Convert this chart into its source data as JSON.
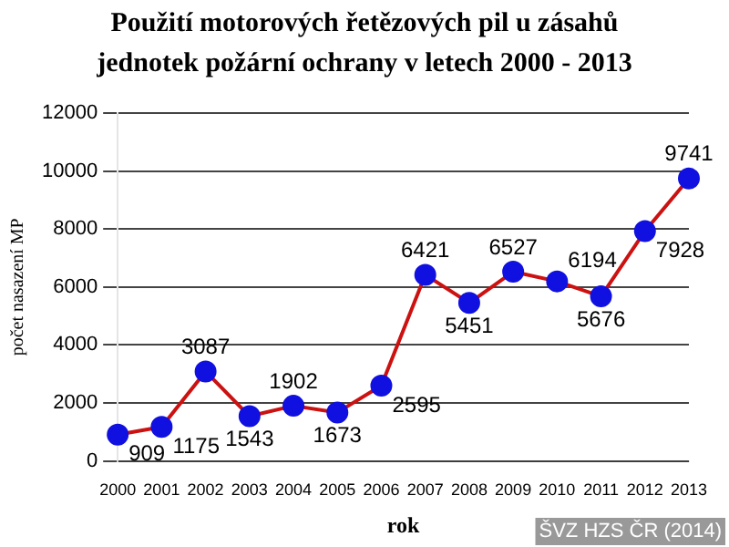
{
  "chart_data": {
    "type": "line",
    "title": "Použití motorových řetězových pil u zásahů jednotek požární ochrany v letech 2000 - 2013",
    "xlabel": "rok",
    "ylabel": "počet nasazení MP",
    "categories": [
      "2000",
      "2001",
      "2002",
      "2003",
      "2004",
      "2005",
      "2006",
      "2007",
      "2008",
      "2009",
      "2010",
      "2011",
      "2012",
      "2013"
    ],
    "series": [
      {
        "color": "#cc1111",
        "colors": [
          "#1010e0",
          "#1010e0",
          "#1010e0",
          "#1010e0",
          "#1010e0",
          "#1010e0",
          "#1010e0",
          "#1010e0",
          "#1010e0",
          "#1010e0",
          "#1010e0",
          "#1010e0",
          "#1010e0",
          "#1010e0"
        ],
        "values": [
          909,
          1175,
          3087,
          1543,
          1902,
          1673,
          2595,
          6421,
          5451,
          6527,
          6194,
          5676,
          7928,
          9741
        ]
      }
    ],
    "ylim": [
      0,
      12000
    ],
    "yticks": [
      0,
      2000,
      4000,
      6000,
      8000,
      10000,
      12000
    ],
    "grid": "y",
    "legend": false,
    "marker": "circle",
    "line_style": "solid",
    "data_labels": true,
    "annotations": [
      "ŠVZ HZS ČR (2014)"
    ]
  }
}
